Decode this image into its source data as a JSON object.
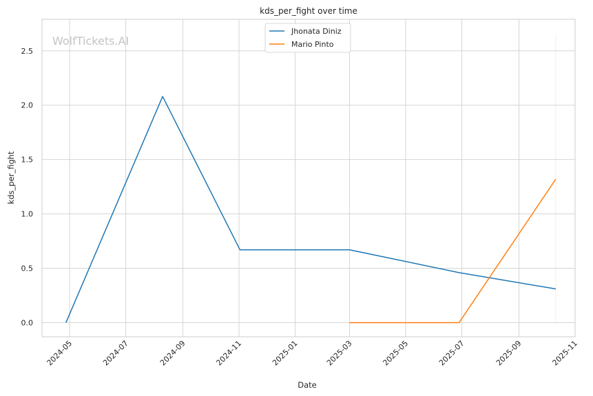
{
  "chart_data": {
    "type": "line",
    "title": "kds_per_fight over time",
    "xlabel": "Date",
    "ylabel": "kds_per_fight",
    "watermark": "WolfTickets.AI",
    "x_axis_type": "date",
    "xlim": [
      "2024-04-01",
      "2025-11-01"
    ],
    "ylim": [
      -0.13,
      2.79
    ],
    "x_ticks": [
      "2024-05",
      "2024-07",
      "2024-09",
      "2024-11",
      "2025-01",
      "2025-03",
      "2025-05",
      "2025-07",
      "2025-09",
      "2025-11"
    ],
    "y_ticks": [
      "0.0",
      "0.5",
      "1.0",
      "1.5",
      "2.0",
      "2.5"
    ],
    "grid": true,
    "legend_position": "top-center",
    "series": [
      {
        "name": "Jhonata Diniz",
        "color": "#1f77b4",
        "points": [
          {
            "x": "2024-04-27",
            "y": 0.0
          },
          {
            "x": "2024-08-10",
            "y": 2.08
          },
          {
            "x": "2024-11-02",
            "y": 0.67
          },
          {
            "x": "2025-03-01",
            "y": 0.67
          },
          {
            "x": "2025-06-28",
            "y": 0.46
          },
          {
            "x": "2025-10-11",
            "y": 0.31
          }
        ]
      },
      {
        "name": "Mario Pinto",
        "color": "#ff7f0e",
        "points": [
          {
            "x": "2025-03-01",
            "y": 0.0
          },
          {
            "x": "2025-06-28",
            "y": 0.0
          },
          {
            "x": "2025-10-11",
            "y": 1.32
          }
        ]
      }
    ],
    "faint_vertical_marker": {
      "x": "2025-10-11",
      "y_from": 0.0,
      "y_to": 2.65,
      "color": "#ff7f0e"
    }
  }
}
